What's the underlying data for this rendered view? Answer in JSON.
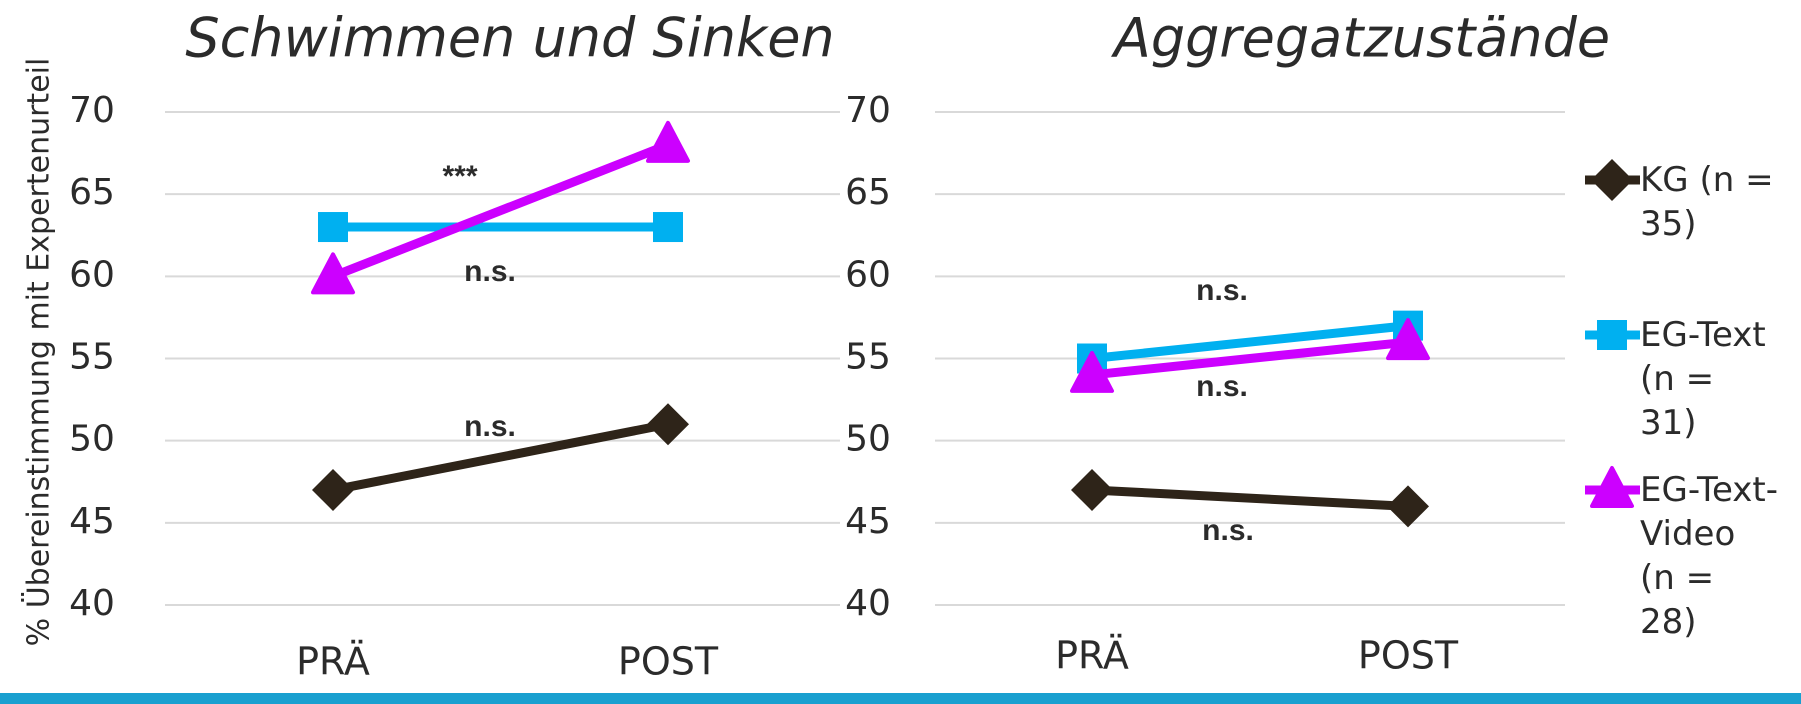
{
  "chart_data": [
    {
      "type": "line",
      "title": "Schwimmen und Sinken",
      "y_label": "% Übereinstimmung mit Expertenurteil",
      "categories": [
        "PRÄ",
        "POST"
      ],
      "ylim": [
        40,
        70
      ],
      "yticks": [
        40,
        45,
        50,
        55,
        60,
        65,
        70
      ],
      "grid": true,
      "series": [
        {
          "name": "KG (n = 35)",
          "color": "#2e2419",
          "marker": "diamond",
          "values": [
            47,
            51
          ]
        },
        {
          "name": "EG-Text (n = 31)",
          "color": "#00b0f0",
          "marker": "square",
          "values": [
            63,
            63
          ]
        },
        {
          "name": "EG-Text-Video (n = 28)",
          "color": "#cc00ff",
          "marker": "triangle",
          "values": [
            60,
            68
          ]
        }
      ],
      "annotations": [
        "***",
        "n.s.",
        "n.s."
      ],
      "legend": "right"
    },
    {
      "type": "line",
      "title": "Aggregatzustände",
      "categories": [
        "PRÄ",
        "POST"
      ],
      "ylim": [
        40,
        70
      ],
      "yticks": [
        40,
        45,
        50,
        55,
        60,
        65,
        70
      ],
      "grid": true,
      "series": [
        {
          "name": "KG (n = 35)",
          "color": "#2e2419",
          "marker": "diamond",
          "values": [
            47,
            46
          ]
        },
        {
          "name": "EG-Text (n = 31)",
          "color": "#00b0f0",
          "marker": "square",
          "values": [
            55,
            57
          ]
        },
        {
          "name": "EG-Text-Video (n = 28)",
          "color": "#cc00ff",
          "marker": "triangle",
          "values": [
            54,
            56
          ]
        }
      ],
      "annotations": [
        "n.s.",
        "n.s.",
        "n.s."
      ]
    }
  ]
}
